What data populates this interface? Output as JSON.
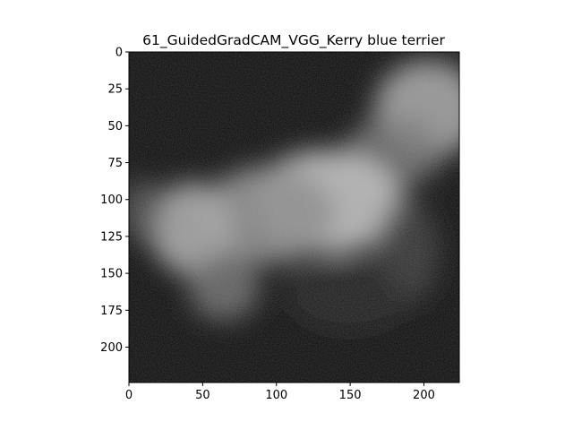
{
  "figure": {
    "title": "61_GuidedGradCAM_VGG_Kerry blue terrier"
  },
  "image": {
    "description_colors": {
      "background": "#030303",
      "highlight": "#c8c8c8"
    },
    "extent": {
      "x": [
        0,
        224
      ],
      "y": [
        0,
        224
      ]
    }
  },
  "axes": {
    "x_ticks": [
      {
        "value": 0,
        "label": "0"
      },
      {
        "value": 50,
        "label": "50"
      },
      {
        "value": 100,
        "label": "100"
      },
      {
        "value": 150,
        "label": "150"
      },
      {
        "value": 200,
        "label": "200"
      }
    ],
    "y_ticks": [
      {
        "value": 0,
        "label": "0"
      },
      {
        "value": 25,
        "label": "25"
      },
      {
        "value": 50,
        "label": "50"
      },
      {
        "value": 75,
        "label": "75"
      },
      {
        "value": 100,
        "label": "100"
      },
      {
        "value": 125,
        "label": "125"
      },
      {
        "value": 150,
        "label": "150"
      },
      {
        "value": 175,
        "label": "175"
      },
      {
        "value": 200,
        "label": "200"
      }
    ]
  }
}
